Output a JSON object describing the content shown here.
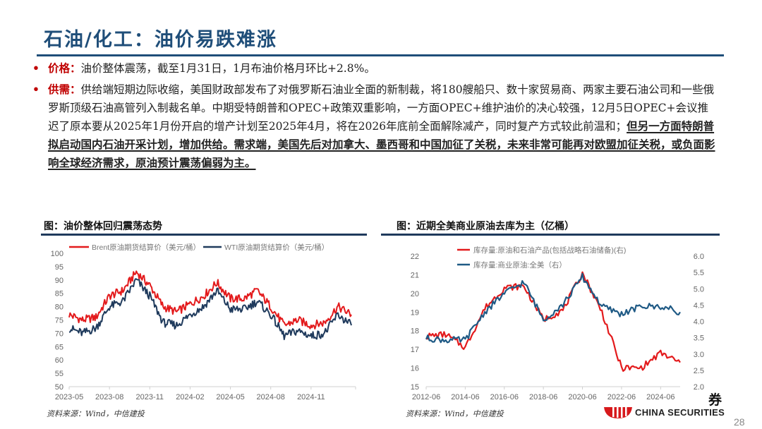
{
  "page": {
    "title": "石油/化工：油价易跌难涨",
    "page_number": "28",
    "brand_glyph": "券",
    "brand_text": "CHINA SECURITIES"
  },
  "bullets": [
    {
      "key": "价格：",
      "text": "油价整体震荡，截至1月31日，1月布油价格月环比+2.8%。",
      "underlined": ""
    },
    {
      "key": "供需：",
      "text": "供给端短期边际收缩，美国财政部发布了对俄罗斯石油业全面的新制裁，将180艘船只、数十家贸易商、两家主要石油公司和一些俄罗斯顶级石油高管列入制裁名单。中期受特朗普和OPEC+政策双重影响，一方面OPEC+维护油价的决心较强，12月5日OPEC+会议推迟了原本要从2025年1月份开启的增产计划至2025年4月，将在2026年底前全面解除减产，同时复产方式较此前温和；",
      "underlined": "但另一方面特朗普拟启动国内石油开采计划，增加供给。需求端，美国先后对加拿大、墨西哥和中国加征了关税，未来非常可能再对欧盟加征关税，或负面影响全球经济需求，原油预计震荡偏弱为主。"
    }
  ],
  "figures": {
    "left": {
      "title": "图：油价整体回归震荡态势",
      "source": "资料来源：Wind，中信建投"
    },
    "right": {
      "title": "图：近期全美商业原油去库为主（亿桶）",
      "source": "资料来源：Wind，中信建投"
    }
  },
  "chart_data": [
    {
      "type": "line",
      "title": "图：油价整体回归震荡态势",
      "xlabel": "",
      "ylabel": "",
      "x_ticks": [
        "2023-05",
        "2023-08",
        "2023-11",
        "2024-02",
        "2024-05",
        "2024-08",
        "2024-11"
      ],
      "y_ticks": [
        50,
        55,
        60,
        65,
        70,
        75,
        80,
        85,
        90,
        95,
        100
      ],
      "ylim": [
        50,
        100
      ],
      "grid": false,
      "legend_position": "top",
      "colors": {
        "brent": "#e31a1c",
        "wti": "#1f3a5c"
      },
      "x": [
        "2023-05",
        "2023-06",
        "2023-07",
        "2023-08",
        "2023-09",
        "2023-10",
        "2023-11",
        "2023-12",
        "2024-01",
        "2024-02",
        "2024-03",
        "2024-04",
        "2024-05",
        "2024-06",
        "2024-07",
        "2024-08",
        "2024-09",
        "2024-10",
        "2024-11",
        "2024-12",
        "2025-01",
        "2025-02"
      ],
      "series": [
        {
          "name": "Brent原油期货结算价（美元/桶）",
          "values": [
            77,
            75,
            76,
            84,
            86,
            93,
            88,
            80,
            78,
            81,
            84,
            89,
            83,
            83,
            86,
            80,
            73,
            75,
            73,
            74,
            80,
            77
          ]
        },
        {
          "name": "WTI原油期货结算价（美元/桶）",
          "values": [
            72,
            70,
            72,
            80,
            82,
            90,
            84,
            74,
            73,
            77,
            80,
            86,
            79,
            79,
            82,
            77,
            69,
            71,
            69,
            70,
            77,
            73
          ]
        }
      ]
    },
    {
      "type": "line",
      "title": "图：近期全美商业原油去库为主（亿桶）",
      "xlabel": "",
      "ylabel": "",
      "x_ticks": [
        "2012-06",
        "2014-06",
        "2016-06",
        "2018-06",
        "2020-06",
        "2022-06",
        "2024-06"
      ],
      "y_ticks_left": [
        15,
        16,
        17,
        18,
        19,
        20,
        21,
        22
      ],
      "y_ticks_right": [
        "2.0",
        "2.5",
        "3.0",
        "3.5",
        "4.0",
        "4.5",
        "5.0",
        "5.5",
        "6.0"
      ],
      "ylim_left": [
        15,
        22
      ],
      "ylim_right": [
        2.0,
        6.0
      ],
      "grid": false,
      "legend_position": "top",
      "colors": {
        "total": "#e31a1c",
        "commercial": "#1f5a85"
      },
      "x": [
        "2012-06",
        "2013-06",
        "2014-06",
        "2015-06",
        "2016-06",
        "2017-06",
        "2018-06",
        "2019-06",
        "2020-06",
        "2021-06",
        "2022-06",
        "2023-06",
        "2024-06",
        "2024-12"
      ],
      "series": [
        {
          "name": "库存量:原油和石油产品(包括战略石油储备)(右)",
          "axis": "left",
          "values": [
            17.7,
            17.8,
            17.1,
            19.2,
            20.3,
            20.4,
            18.6,
            19.1,
            21.1,
            19.0,
            16.0,
            16.0,
            16.8,
            16.3
          ]
        },
        {
          "name": "库存量:商业原油:全美（右）",
          "axis": "left",
          "values": [
            17.6,
            17.5,
            17.5,
            19.0,
            20.0,
            20.6,
            18.6,
            19.4,
            20.9,
            19.3,
            18.9,
            19.3,
            19.3,
            19.0
          ]
        }
      ]
    }
  ]
}
